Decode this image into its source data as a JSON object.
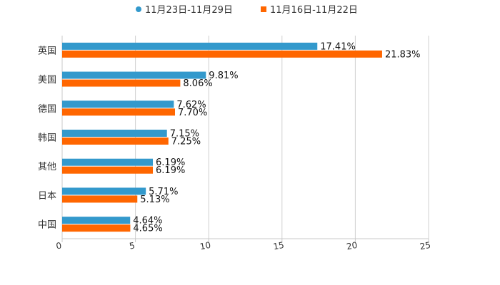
{
  "chart_data": {
    "type": "bar",
    "orientation": "horizontal",
    "categories": [
      "英国",
      "美国",
      "德国",
      "韩国",
      "其他",
      "日本",
      "中国"
    ],
    "series": [
      {
        "name": "11月23日-11月29日",
        "color": "#3399CC",
        "values": [
          17.41,
          9.81,
          7.62,
          7.15,
          6.19,
          5.71,
          4.64
        ],
        "labels": [
          "17.41%",
          "9.81%",
          "7.62%",
          "7.15%",
          "6.19%",
          "5.71%",
          "4.64%"
        ]
      },
      {
        "name": "11月16日-11月22日",
        "color": "#FF6600",
        "values": [
          21.83,
          8.06,
          7.7,
          7.25,
          6.19,
          5.13,
          4.65
        ],
        "labels": [
          "21.83%",
          "8.06%",
          "7.70%",
          "7.25%",
          "6.19%",
          "5.13%",
          "4.65%"
        ]
      }
    ],
    "xlim": [
      0,
      25
    ],
    "xticks": [
      0,
      5,
      10,
      15,
      20,
      25
    ],
    "xtick_labels": [
      "0",
      "5",
      "10",
      "15",
      "20",
      "25"
    ],
    "grid": true,
    "legend_position": "top-center"
  }
}
